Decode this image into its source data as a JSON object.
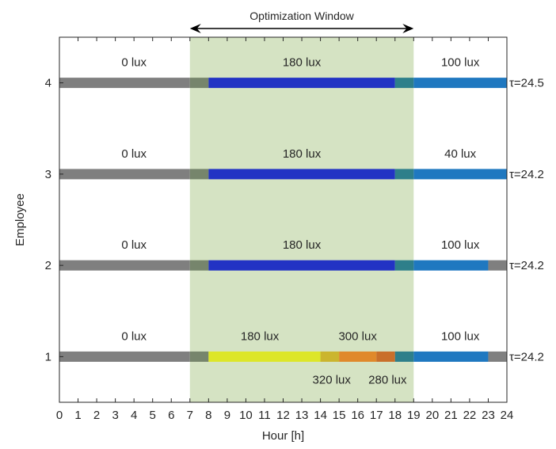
{
  "chart_data": {
    "type": "gantt",
    "title": "",
    "xlabel": "Hour [h]",
    "ylabel": "Employee",
    "xlim": [
      0,
      24
    ],
    "ylim": [
      0.5,
      4.5
    ],
    "xticks": [
      "0",
      "1",
      "2",
      "3",
      "4",
      "5",
      "6",
      "7",
      "8",
      "9",
      "10",
      "11",
      "12",
      "13",
      "14",
      "15",
      "16",
      "17",
      "18",
      "19",
      "20",
      "21",
      "22",
      "23",
      "24"
    ],
    "yticks": [
      "1",
      "2",
      "3",
      "4"
    ],
    "grid": false,
    "window": {
      "label": "Optimization Window",
      "start": 7,
      "end": 19,
      "color": "#d5e3c3"
    },
    "employees": [
      {
        "id": 1,
        "tau_label": "τ=24.2",
        "segments": [
          {
            "start": 0,
            "end": 7,
            "color": "#7f7f7f"
          },
          {
            "start": 7,
            "end": 8,
            "color": "#76856c"
          },
          {
            "start": 8,
            "end": 14,
            "color": "#dde629"
          },
          {
            "start": 14,
            "end": 15,
            "color": "#cbb52e"
          },
          {
            "start": 15,
            "end": 17,
            "color": "#e0892b"
          },
          {
            "start": 17,
            "end": 18,
            "color": "#c96f2a"
          },
          {
            "start": 18,
            "end": 19,
            "color": "#2e7f8a"
          },
          {
            "start": 19,
            "end": 23,
            "color": "#1f78c0"
          },
          {
            "start": 23,
            "end": 24,
            "color": "#7f7f7f"
          }
        ],
        "labels": [
          {
            "text": "0 lux",
            "x": 4,
            "pos": "above"
          },
          {
            "text": "180 lux",
            "x": 10.75,
            "pos": "above"
          },
          {
            "text": "300 lux",
            "x": 16,
            "pos": "above"
          },
          {
            "text": "100 lux",
            "x": 21.5,
            "pos": "above"
          },
          {
            "text": "320 lux",
            "x": 14.6,
            "pos": "below"
          },
          {
            "text": "280 lux",
            "x": 17.6,
            "pos": "below"
          }
        ]
      },
      {
        "id": 2,
        "tau_label": "τ=24.2",
        "segments": [
          {
            "start": 0,
            "end": 7,
            "color": "#7f7f7f"
          },
          {
            "start": 7,
            "end": 8,
            "color": "#76856c"
          },
          {
            "start": 8,
            "end": 18,
            "color": "#2233c4"
          },
          {
            "start": 18,
            "end": 19,
            "color": "#2e7f8a"
          },
          {
            "start": 19,
            "end": 23,
            "color": "#1f78c0"
          },
          {
            "start": 23,
            "end": 24,
            "color": "#7f7f7f"
          }
        ],
        "labels": [
          {
            "text": "0 lux",
            "x": 4,
            "pos": "above"
          },
          {
            "text": "180 lux",
            "x": 13,
            "pos": "above"
          },
          {
            "text": "100 lux",
            "x": 21.5,
            "pos": "above"
          }
        ]
      },
      {
        "id": 3,
        "tau_label": "τ=24.2",
        "segments": [
          {
            "start": 0,
            "end": 7,
            "color": "#7f7f7f"
          },
          {
            "start": 7,
            "end": 8,
            "color": "#76856c"
          },
          {
            "start": 8,
            "end": 18,
            "color": "#2233c4"
          },
          {
            "start": 18,
            "end": 19,
            "color": "#2e7f8a"
          },
          {
            "start": 19,
            "end": 24,
            "color": "#1f78c0"
          }
        ],
        "labels": [
          {
            "text": "0 lux",
            "x": 4,
            "pos": "above"
          },
          {
            "text": "180 lux",
            "x": 13,
            "pos": "above"
          },
          {
            "text": "40 lux",
            "x": 21.5,
            "pos": "above"
          }
        ]
      },
      {
        "id": 4,
        "tau_label": "τ=24.5",
        "segments": [
          {
            "start": 0,
            "end": 7,
            "color": "#7f7f7f"
          },
          {
            "start": 7,
            "end": 8,
            "color": "#76856c"
          },
          {
            "start": 8,
            "end": 18,
            "color": "#2233c4"
          },
          {
            "start": 18,
            "end": 19,
            "color": "#2e7f8a"
          },
          {
            "start": 19,
            "end": 24,
            "color": "#1f78c0"
          }
        ],
        "labels": [
          {
            "text": "0 lux",
            "x": 4,
            "pos": "above"
          },
          {
            "text": "180 lux",
            "x": 13,
            "pos": "above"
          },
          {
            "text": "100 lux",
            "x": 21.5,
            "pos": "above"
          }
        ]
      }
    ]
  }
}
